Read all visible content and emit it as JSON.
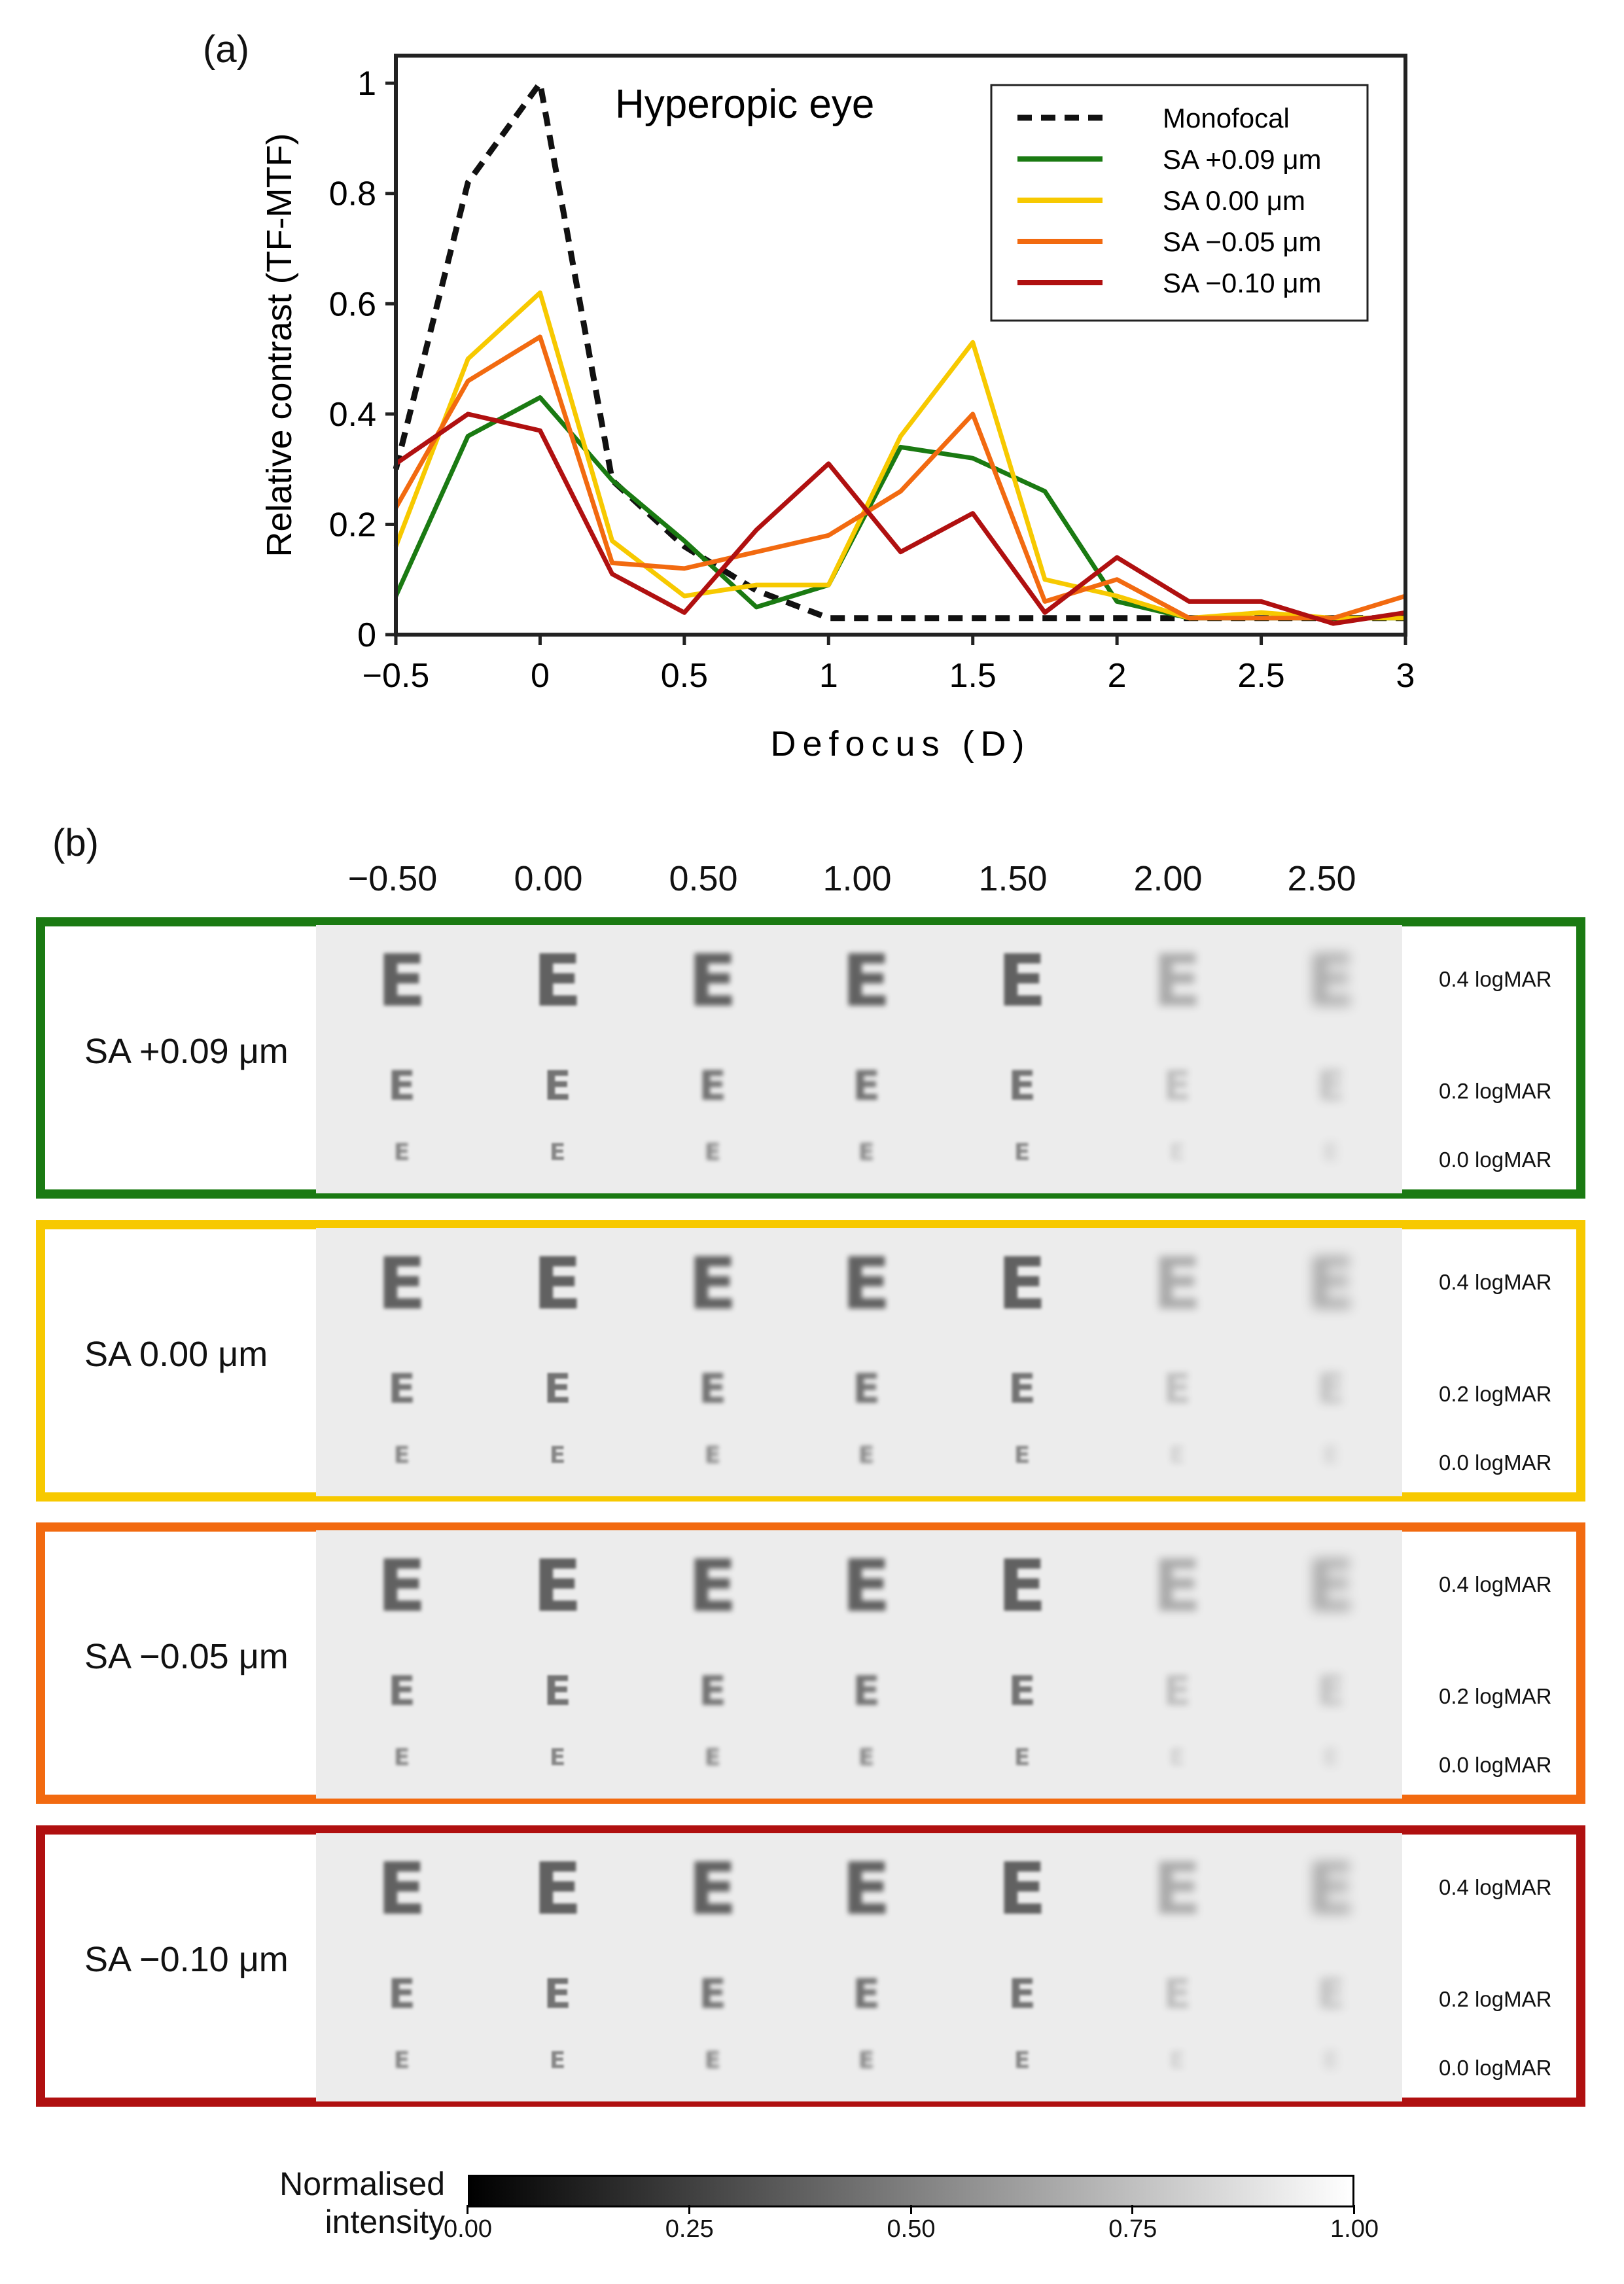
{
  "panel_a_label": "(a)",
  "panel_b_label": "(b)",
  "chart_data": {
    "type": "line",
    "title": "Hyperopic eye",
    "xlabel": "Defocus (D)",
    "ylabel": "Relative contrast (TF-MTF)",
    "xlim": [
      -0.5,
      3
    ],
    "ylim": [
      0,
      1.05
    ],
    "xticks": [
      -0.5,
      0,
      0.5,
      1,
      1.5,
      2,
      2.5,
      3
    ],
    "xtick_labels": [
      "−0.5",
      "0",
      "0.5",
      "1",
      "1.5",
      "2",
      "2.5",
      "3"
    ],
    "yticks": [
      0,
      0.2,
      0.4,
      0.6,
      0.8,
      1
    ],
    "ytick_labels": [
      "0",
      "0.2",
      "0.4",
      "0.6",
      "0.8",
      "1"
    ],
    "legend_position": "top-right",
    "x": [
      -0.5,
      -0.25,
      0,
      0.25,
      0.5,
      0.75,
      1,
      1.25,
      1.5,
      1.75,
      2,
      2.25,
      2.5,
      2.75,
      3
    ],
    "series": [
      {
        "name": "Monofocal",
        "color": "#111111",
        "dashed": true,
        "values": [
          0.3,
          0.82,
          1.0,
          0.28,
          0.16,
          0.08,
          0.03,
          0.03,
          0.03,
          0.03,
          0.03,
          0.03,
          0.03,
          0.03,
          0.03
        ]
      },
      {
        "name": "SA +0.09 μm",
        "color": "#1a7a12",
        "dashed": false,
        "values": [
          0.07,
          0.36,
          0.43,
          0.28,
          0.17,
          0.05,
          0.09,
          0.34,
          0.32,
          0.26,
          0.06,
          0.03,
          0.03,
          0.03,
          0.03
        ]
      },
      {
        "name": "SA 0.00 μm",
        "color": "#f7c900",
        "dashed": false,
        "values": [
          0.16,
          0.5,
          0.62,
          0.17,
          0.07,
          0.09,
          0.09,
          0.36,
          0.53,
          0.1,
          0.07,
          0.03,
          0.04,
          0.03,
          0.03
        ]
      },
      {
        "name": "SA −0.05 μm",
        "color": "#f26a10",
        "dashed": false,
        "values": [
          0.23,
          0.46,
          0.54,
          0.13,
          0.12,
          0.15,
          0.18,
          0.26,
          0.4,
          0.06,
          0.1,
          0.03,
          0.03,
          0.03,
          0.07
        ]
      },
      {
        "name": "SA −0.10 μm",
        "color": "#b01010",
        "dashed": false,
        "values": [
          0.31,
          0.4,
          0.37,
          0.11,
          0.04,
          0.19,
          0.31,
          0.15,
          0.22,
          0.04,
          0.14,
          0.06,
          0.06,
          0.02,
          0.04
        ]
      }
    ]
  },
  "defocus_headers": [
    "−0.50",
    "0.00",
    "0.50",
    "1.00",
    "1.50",
    "2.00",
    "2.50"
  ],
  "panels": [
    {
      "label": "SA +0.09 μm",
      "color": "#1a7a12"
    },
    {
      "label": "SA 0.00 μm",
      "color": "#f7c900"
    },
    {
      "label": "SA −0.05 μm",
      "color": "#f26a10"
    },
    {
      "label": "SA −0.10 μm",
      "color": "#b01010"
    }
  ],
  "acuity_rows": [
    "0.4 logMAR",
    "0.2 logMAR",
    "0.0 logMAR"
  ],
  "optotype": "E",
  "colorbar": {
    "title_line1": "Normalised",
    "title_line2": "intensity",
    "ticks": [
      "0.00",
      "0.25",
      "0.50",
      "0.75",
      "1.00"
    ],
    "start_color": "#000000",
    "end_color": "#ffffff"
  }
}
